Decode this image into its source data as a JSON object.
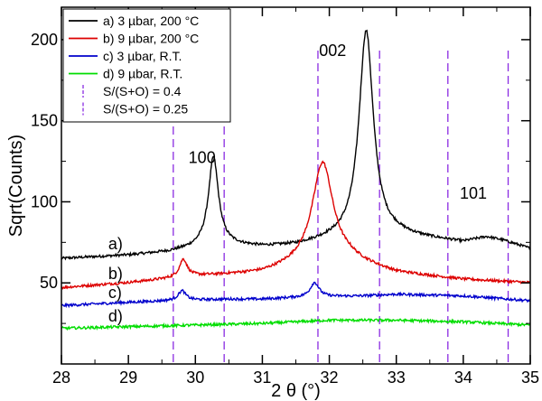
{
  "chart_data": {
    "type": "line",
    "xlabel": "2 θ (°)",
    "ylabel": "Sqrt(Counts)",
    "xlim": [
      28,
      35
    ],
    "ylim": [
      0,
      220
    ],
    "xticks": [
      28,
      29,
      30,
      31,
      32,
      33,
      34,
      35
    ],
    "yticks": [
      50,
      100,
      150,
      200
    ],
    "grid": false,
    "legend_position": "top-left",
    "series": [
      {
        "name": "a) 3 µbar, 200 °C",
        "tag": "a)",
        "color": "#000000",
        "baseline": [
          [
            28,
            65
          ],
          [
            29,
            67
          ],
          [
            29.6,
            69
          ],
          [
            30.1,
            72
          ],
          [
            30.5,
            73
          ],
          [
            31,
            72
          ],
          [
            31.5,
            73
          ],
          [
            32,
            76
          ],
          [
            33,
            79
          ],
          [
            33.5,
            77
          ],
          [
            34,
            75
          ],
          [
            34.35,
            78
          ],
          [
            34.6,
            76
          ],
          [
            35,
            71
          ]
        ],
        "peaks": [
          {
            "x": 30.27,
            "height": 55,
            "width": 0.09
          },
          {
            "x": 32.55,
            "height": 128,
            "width": 0.13
          }
        ]
      },
      {
        "name": "b) 9 µbar, 200 °C",
        "tag": "b)",
        "color": "#dd0000",
        "baseline": [
          [
            28,
            47
          ],
          [
            29,
            50
          ],
          [
            29.5,
            52
          ],
          [
            30,
            54
          ],
          [
            30.5,
            55
          ],
          [
            31,
            56
          ],
          [
            31.5,
            60
          ],
          [
            32.3,
            63
          ],
          [
            33,
            56
          ],
          [
            34,
            52
          ],
          [
            35,
            50
          ]
        ],
        "peaks": [
          {
            "x": 29.82,
            "height": 11,
            "width": 0.07
          },
          {
            "x": 31.9,
            "height": 63,
            "width": 0.19
          }
        ]
      },
      {
        "name": "c) 3 µbar, R.T.",
        "tag": "c)",
        "color": "#0000cc",
        "baseline": [
          [
            28,
            36
          ],
          [
            29,
            38
          ],
          [
            29.6,
            39
          ],
          [
            30.5,
            40
          ],
          [
            31,
            40
          ],
          [
            31.5,
            41
          ],
          [
            32.5,
            42
          ],
          [
            33,
            43
          ],
          [
            34,
            42
          ],
          [
            35,
            39
          ]
        ],
        "peaks": [
          {
            "x": 29.8,
            "height": 6,
            "width": 0.07
          },
          {
            "x": 31.78,
            "height": 9,
            "width": 0.08
          }
        ]
      },
      {
        "name": "d) 9 µbar, R.T.",
        "tag": "d)",
        "color": "#00dd00",
        "baseline": [
          [
            28,
            22
          ],
          [
            29,
            23
          ],
          [
            30,
            24
          ],
          [
            31,
            25
          ],
          [
            32,
            27
          ],
          [
            32.5,
            27
          ],
          [
            33,
            27
          ],
          [
            34,
            26
          ],
          [
            35,
            24
          ]
        ],
        "peaks": []
      }
    ],
    "reference_lines": [
      {
        "name": "S/(S+O) = 0.4",
        "color": "#8a2be2",
        "x": [
          29.67,
          31.83,
          33.77
        ]
      },
      {
        "name": "S/(S+O) = 0.25",
        "color": "#8a2be2",
        "x": [
          30.43,
          32.75,
          34.67
        ]
      }
    ],
    "annotations": [
      {
        "text": "100",
        "x": 30.1,
        "y": 124
      },
      {
        "text": "002",
        "x": 32.05,
        "y": 190
      },
      {
        "text": "101",
        "x": 34.15,
        "y": 102
      }
    ]
  }
}
